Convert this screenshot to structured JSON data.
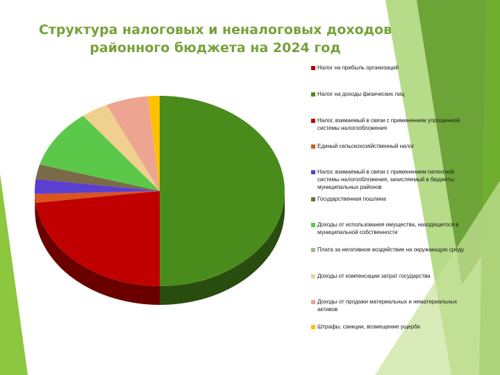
{
  "title_lines": [
    "Структура налоговых и неналоговых доходов",
    "районного бюджета на 2024 год"
  ],
  "colors": {
    "title": "#76a23a",
    "accent_green": "#8dc63f"
  },
  "chart_data": {
    "type": "pie",
    "style": "3d",
    "legend_position": "right",
    "title": "Структура налоговых и неналоговых доходов районного бюджета на 2024 год",
    "slices": [
      {
        "label": "Налог на прибыль организаций",
        "value": 0.0,
        "color": "#c00000"
      },
      {
        "label": "Налог на доходы физических лиц",
        "value": 50.0,
        "color": "#4a8c1c"
      },
      {
        "label": "Налог, взимаемый в связи с применением упрощенной системы налогообложения",
        "value": 23.0,
        "color": "#c00000"
      },
      {
        "label": "Единый сельскохозяйственный налог",
        "value": 1.5,
        "color": "#d9541e"
      },
      {
        "label": "Налог, взимаемый в связи с применением патентной системы налогообложения, зачисляемый в бюджеты муниципальных районов",
        "value": 2.5,
        "color": "#5b3fd1"
      },
      {
        "label": "Государственная пошлина",
        "value": 2.5,
        "color": "#7a6a47"
      },
      {
        "label": "Доходы от использования имущества, находящегося в муниципальной собственности",
        "value": 10.0,
        "color": "#5bc84a"
      },
      {
        "label": "Плата за негативное воздействие на окружающую среду",
        "value": 0.0,
        "color": "#9bbb8a"
      },
      {
        "label": "Доходы от компенсации затрат государства",
        "value": 3.5,
        "color": "#f0d08e"
      },
      {
        "label": "Доходы от продажи материальных и нематериальных активов",
        "value": 5.5,
        "color": "#eda592"
      },
      {
        "label": "Штрафы, санкции, возмещение ущерба",
        "value": 1.5,
        "color": "#ffc000"
      }
    ]
  }
}
